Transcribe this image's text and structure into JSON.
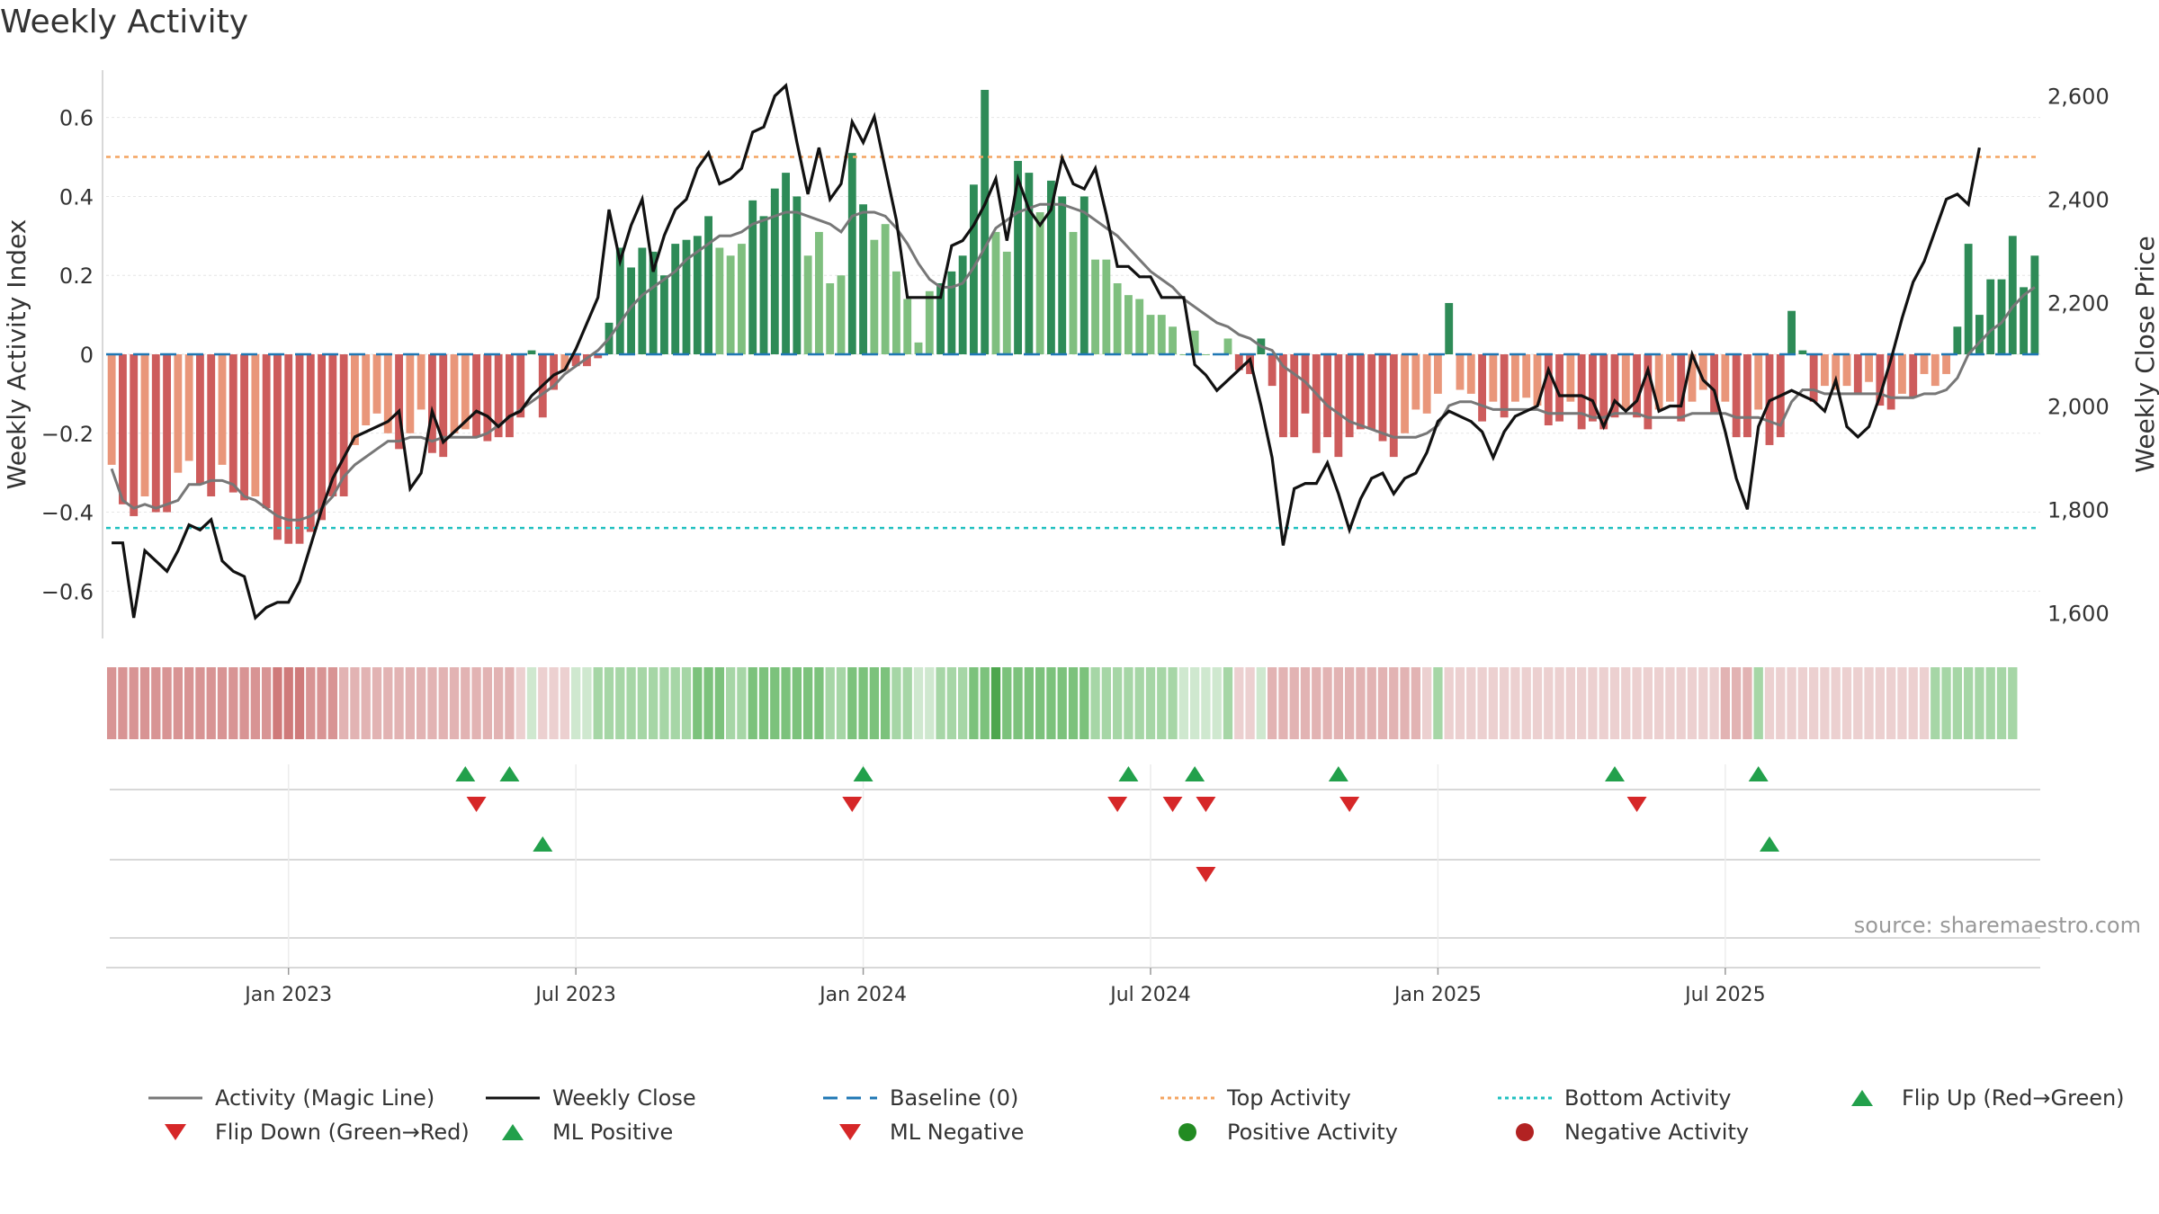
{
  "title": "Weekly Activity",
  "source": "source: sharemaestro.com",
  "colors": {
    "strong_green": "#2e8b57",
    "light_green": "#7fbf7f",
    "strong_red": "#cd5c5c",
    "light_red": "#e9967a",
    "close": "#111111",
    "magic": "#777777",
    "baseline": "#1f77b4",
    "top": "#f4a460",
    "bottom": "#20c0c0",
    "flip_up": "#22a04b",
    "flip_down": "#d62728"
  },
  "chart_data": {
    "type": "bar",
    "title": "Weekly Activity",
    "ylabel_left": "Weekly Activity Index",
    "ylabel_right": "Weekly Close Price",
    "ylim_left": [
      -0.72,
      0.72
    ],
    "ylim_right": [
      1550,
      2650
    ],
    "yticks_left": [
      -0.6,
      -0.4,
      -0.2,
      0,
      0.2,
      0.4,
      0.6
    ],
    "yticks_left_labels": [
      "−0.6",
      "−0.4",
      "−0.2",
      "0",
      "0.2",
      "0.4",
      "0.6"
    ],
    "yticks_right": [
      1600,
      1800,
      2000,
      2200,
      2400,
      2600
    ],
    "yticks_right_labels": [
      "1,600",
      "1,800",
      "2,000",
      "2,200",
      "2,400",
      "2,600"
    ],
    "xticks": [
      {
        "week": 16,
        "label": "Jan 2023"
      },
      {
        "week": 42,
        "label": "Jul 2023"
      },
      {
        "week": 68,
        "label": "Jan 2024"
      },
      {
        "week": 94,
        "label": "Jul 2024"
      },
      {
        "week": 120,
        "label": "Jan 2025"
      },
      {
        "week": 146,
        "label": "Jul 2025"
      }
    ],
    "top_activity": 0.5,
    "bottom_activity": -0.44,
    "baseline": 0,
    "activity": [
      -0.28,
      -0.38,
      -0.41,
      -0.36,
      -0.4,
      -0.4,
      -0.3,
      -0.27,
      -0.33,
      -0.36,
      -0.28,
      -0.35,
      -0.37,
      -0.36,
      -0.39,
      -0.47,
      -0.48,
      -0.48,
      -0.45,
      -0.42,
      -0.36,
      -0.36,
      -0.23,
      -0.18,
      -0.15,
      -0.2,
      -0.24,
      -0.2,
      -0.14,
      -0.25,
      -0.26,
      -0.2,
      -0.19,
      -0.21,
      -0.22,
      -0.21,
      -0.21,
      -0.16,
      0.01,
      -0.16,
      -0.09,
      -0.04,
      -0.03,
      -0.03,
      -0.01,
      0.08,
      0.27,
      0.22,
      0.27,
      0.26,
      0.2,
      0.28,
      0.29,
      0.3,
      0.35,
      0.27,
      0.25,
      0.28,
      0.39,
      0.35,
      0.42,
      0.46,
      0.4,
      0.25,
      0.31,
      0.18,
      0.2,
      0.51,
      0.38,
      0.29,
      0.33,
      0.21,
      0.14,
      0.03,
      0.16,
      0.18,
      0.21,
      0.25,
      0.43,
      0.67,
      0.31,
      0.26,
      0.49,
      0.46,
      0.36,
      0.44,
      0.4,
      0.31,
      0.4,
      0.24,
      0.24,
      0.18,
      0.15,
      0.14,
      0.1,
      0.1,
      0.07,
      0.0,
      0.06,
      0.0,
      0.0,
      0.04,
      -0.04,
      -0.05,
      0.04,
      -0.08,
      -0.21,
      -0.21,
      -0.15,
      -0.25,
      -0.21,
      -0.26,
      -0.21,
      -0.19,
      -0.19,
      -0.22,
      -0.26,
      -0.2,
      -0.14,
      -0.15,
      -0.1,
      0.13,
      -0.09,
      -0.1,
      -0.17,
      -0.12,
      -0.16,
      -0.12,
      -0.11,
      -0.13,
      -0.18,
      -0.17,
      -0.12,
      -0.19,
      -0.17,
      -0.19,
      -0.16,
      -0.14,
      -0.16,
      -0.19,
      -0.14,
      -0.12,
      -0.17,
      -0.12,
      -0.09,
      -0.15,
      -0.12,
      -0.21,
      -0.21,
      -0.14,
      -0.23,
      -0.21,
      0.11,
      0.01,
      -0.12,
      -0.08,
      -0.09,
      -0.08,
      -0.1,
      -0.07,
      -0.13,
      -0.14,
      -0.1,
      -0.11,
      -0.05,
      -0.08,
      -0.05,
      0.07,
      0.28,
      0.1,
      0.19,
      0.19,
      0.3,
      0.17,
      0.25
    ],
    "magic_line": [
      -0.29,
      -0.37,
      -0.39,
      -0.38,
      -0.39,
      -0.38,
      -0.37,
      -0.33,
      -0.33,
      -0.32,
      -0.32,
      -0.33,
      -0.36,
      -0.37,
      -0.39,
      -0.41,
      -0.42,
      -0.42,
      -0.41,
      -0.39,
      -0.36,
      -0.31,
      -0.28,
      -0.26,
      -0.24,
      -0.22,
      -0.22,
      -0.21,
      -0.21,
      -0.22,
      -0.21,
      -0.21,
      -0.21,
      -0.21,
      -0.2,
      -0.18,
      -0.16,
      -0.14,
      -0.12,
      -0.1,
      -0.08,
      -0.05,
      -0.03,
      -0.01,
      0.01,
      0.04,
      0.08,
      0.12,
      0.15,
      0.17,
      0.19,
      0.21,
      0.24,
      0.26,
      0.28,
      0.3,
      0.3,
      0.31,
      0.33,
      0.34,
      0.35,
      0.36,
      0.36,
      0.35,
      0.34,
      0.33,
      0.31,
      0.35,
      0.36,
      0.36,
      0.35,
      0.32,
      0.28,
      0.23,
      0.19,
      0.17,
      0.17,
      0.18,
      0.22,
      0.27,
      0.32,
      0.34,
      0.36,
      0.37,
      0.38,
      0.38,
      0.38,
      0.37,
      0.36,
      0.34,
      0.32,
      0.3,
      0.27,
      0.24,
      0.21,
      0.19,
      0.17,
      0.14,
      0.12,
      0.1,
      0.08,
      0.07,
      0.05,
      0.04,
      0.02,
      0.01,
      -0.03,
      -0.05,
      -0.07,
      -0.1,
      -0.13,
      -0.15,
      -0.17,
      -0.18,
      -0.19,
      -0.2,
      -0.21,
      -0.21,
      -0.21,
      -0.2,
      -0.18,
      -0.13,
      -0.12,
      -0.12,
      -0.13,
      -0.14,
      -0.14,
      -0.14,
      -0.14,
      -0.14,
      -0.15,
      -0.15,
      -0.15,
      -0.15,
      -0.16,
      -0.16,
      -0.15,
      -0.15,
      -0.15,
      -0.16,
      -0.16,
      -0.16,
      -0.16,
      -0.15,
      -0.15,
      -0.15,
      -0.15,
      -0.16,
      -0.16,
      -0.16,
      -0.17,
      -0.18,
      -0.12,
      -0.09,
      -0.09,
      -0.1,
      -0.1,
      -0.1,
      -0.1,
      -0.1,
      -0.1,
      -0.11,
      -0.11,
      -0.11,
      -0.1,
      -0.1,
      -0.09,
      -0.06,
      0.0,
      0.03,
      0.06,
      0.08,
      0.12,
      0.15,
      0.17
    ],
    "weekly_close": [
      1735,
      1735,
      1590,
      1720,
      1700,
      1680,
      1720,
      1770,
      1760,
      1780,
      1700,
      1680,
      1670,
      1590,
      1610,
      1620,
      1620,
      1660,
      1730,
      1800,
      1860,
      1900,
      1940,
      1950,
      1960,
      1970,
      1990,
      1840,
      1870,
      1990,
      1930,
      1950,
      1970,
      1990,
      1980,
      1960,
      1980,
      1990,
      2020,
      2040,
      2060,
      2070,
      2110,
      2160,
      2210,
      2380,
      2280,
      2350,
      2400,
      2260,
      2330,
      2380,
      2400,
      2460,
      2490,
      2430,
      2440,
      2460,
      2530,
      2540,
      2600,
      2620,
      2510,
      2410,
      2500,
      2400,
      2430,
      2550,
      2510,
      2560,
      2460,
      2360,
      2210,
      2210,
      2210,
      2210,
      2310,
      2320,
      2350,
      2390,
      2440,
      2320,
      2440,
      2380,
      2350,
      2380,
      2480,
      2430,
      2420,
      2460,
      2370,
      2270,
      2270,
      2250,
      2250,
      2210,
      2210,
      2210,
      2080,
      2060,
      2030,
      2050,
      2070,
      2090,
      2000,
      1900,
      1730,
      1840,
      1850,
      1850,
      1890,
      1830,
      1760,
      1820,
      1860,
      1870,
      1830,
      1860,
      1870,
      1910,
      1970,
      1990,
      1980,
      1970,
      1950,
      1900,
      1950,
      1980,
      1990,
      2000,
      2070,
      2020,
      2020,
      2020,
      2010,
      1960,
      2010,
      1990,
      2010,
      2070,
      1990,
      2000,
      2000,
      2100,
      2050,
      2030,
      1950,
      1860,
      1800,
      1960,
      2010,
      2020,
      2030,
      2020,
      2010,
      1990,
      2050,
      1960,
      1940,
      1960,
      2020,
      2090,
      2170,
      2240,
      2280,
      2340,
      2400,
      2410,
      2390,
      2500
    ],
    "regime_strip": [
      -3,
      -3,
      -3,
      -3,
      -3,
      -3,
      -3,
      -3,
      -3,
      -3,
      -3,
      -3,
      -3,
      -3,
      -3,
      -4,
      -4,
      -4,
      -3,
      -3,
      -3,
      -2,
      -2,
      -2,
      -2,
      -2,
      -2,
      -2,
      -2,
      -2,
      -2,
      -2,
      -2,
      -2,
      -2,
      -2,
      -2,
      -1,
      1,
      -1,
      -1,
      -1,
      1,
      1,
      2,
      2,
      2,
      2,
      2,
      2,
      2,
      2,
      2,
      3,
      3,
      3,
      2,
      2,
      3,
      3,
      3,
      3,
      3,
      3,
      3,
      2,
      2,
      3,
      3,
      3,
      3,
      2,
      2,
      1,
      1,
      2,
      2,
      2,
      3,
      3,
      4,
      3,
      3,
      3,
      3,
      3,
      3,
      3,
      3,
      2,
      2,
      2,
      2,
      2,
      2,
      2,
      2,
      1,
      1,
      1,
      1,
      2,
      -1,
      -1,
      1,
      -2,
      -2,
      -2,
      -2,
      -2,
      -2,
      -2,
      -2,
      -2,
      -2,
      -2,
      -2,
      -2,
      -2,
      -1,
      2,
      -1,
      -1,
      -1,
      -1,
      -1,
      -1,
      -1,
      -1,
      -1,
      -1,
      -1,
      -1,
      -1,
      -1,
      -1,
      -1,
      -1,
      -1,
      -1,
      -1,
      -1,
      -1,
      -1,
      -1,
      -1,
      -2,
      -2,
      -2,
      2,
      -1,
      -1,
      -1,
      -1,
      -1,
      -1,
      -1,
      -1,
      -1,
      -1,
      -1,
      -1,
      -1,
      -1,
      -1,
      2,
      2,
      2,
      2,
      2,
      2,
      2,
      2
    ],
    "flip_up": [
      32,
      36,
      68,
      92,
      98,
      111,
      136,
      149
    ],
    "flip_down": [
      33,
      67,
      91,
      96,
      99,
      112,
      138
    ],
    "ml_positive": [
      39,
      150
    ],
    "ml_negative": [
      99
    ],
    "legend": [
      "Activity (Magic Line)",
      "Weekly Close",
      "Baseline (0)",
      "Top Activity",
      "Bottom Activity",
      "Flip Up (Red→Green)",
      "Flip Down (Green→Red)",
      "ML Positive",
      "ML Negative",
      "Positive Activity",
      "Negative Activity"
    ]
  }
}
